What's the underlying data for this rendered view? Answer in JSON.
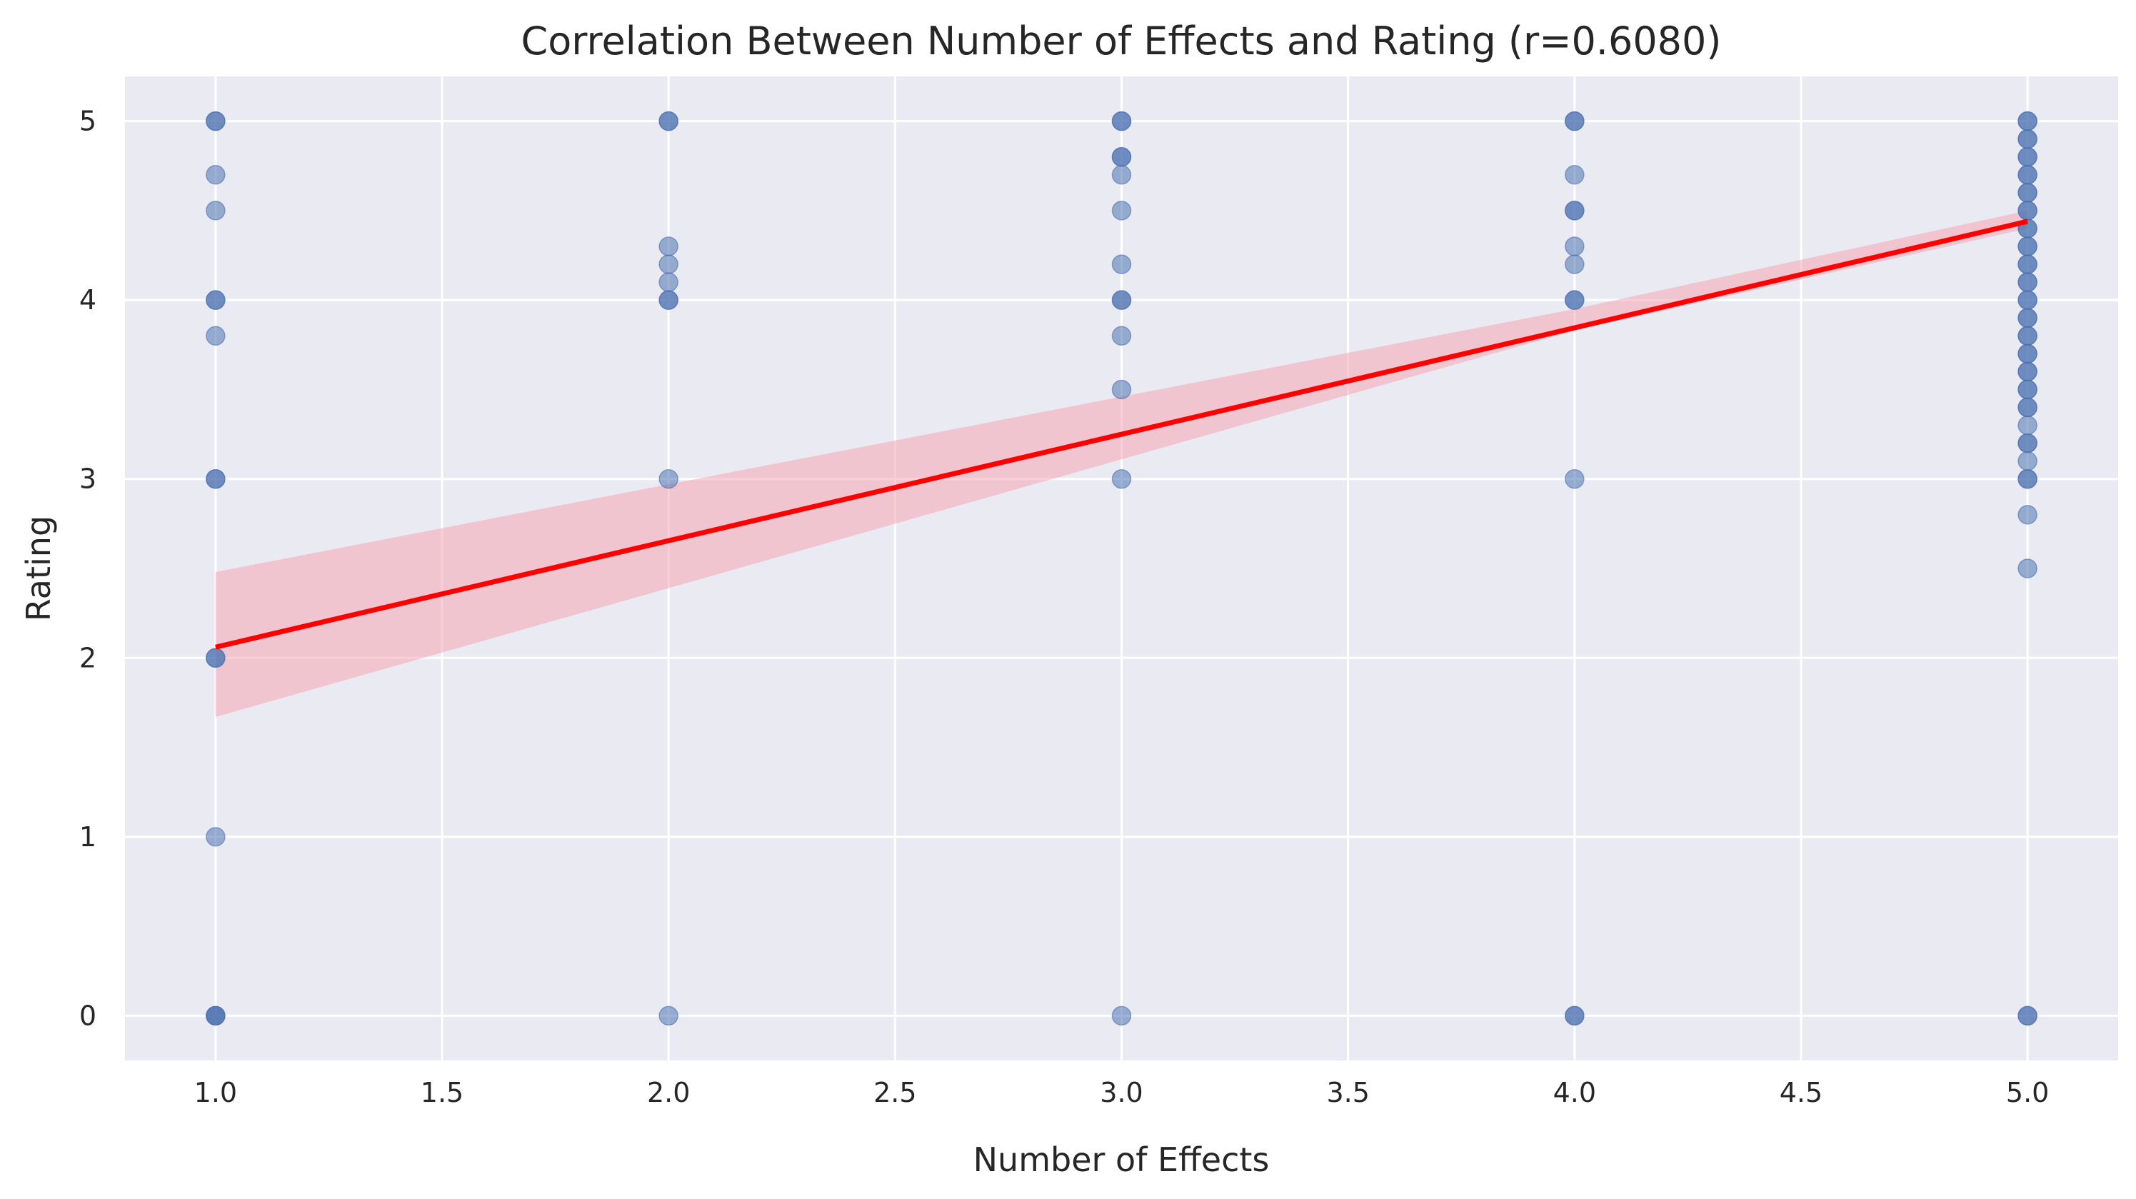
{
  "chart_data": {
    "type": "scatter",
    "title": "Correlation Between Number of Effects and Rating (r=0.6080)",
    "xlabel": "Number of Effects",
    "ylabel": "Rating",
    "xlim": [
      0.8,
      5.2
    ],
    "ylim": [
      -0.25,
      5.25
    ],
    "xticks": [
      "1.0",
      "1.5",
      "2.0",
      "2.5",
      "3.0",
      "3.5",
      "4.0",
      "4.5",
      "5.0"
    ],
    "yticks": [
      "0",
      "1",
      "2",
      "3",
      "4",
      "5"
    ],
    "grid": true,
    "point_color": "#4c72b0",
    "point_opacity": 0.55,
    "regression_color": "#ff0000",
    "band_color": "#f4a6b4",
    "background_color": "#eaeaf2",
    "points": [
      {
        "x": 1,
        "y": 5
      },
      {
        "x": 1,
        "y": 5
      },
      {
        "x": 1,
        "y": 4.7
      },
      {
        "x": 1,
        "y": 4.5
      },
      {
        "x": 1,
        "y": 4
      },
      {
        "x": 1,
        "y": 4
      },
      {
        "x": 1,
        "y": 3.8
      },
      {
        "x": 1,
        "y": 3
      },
      {
        "x": 1,
        "y": 3
      },
      {
        "x": 1,
        "y": 2
      },
      {
        "x": 1,
        "y": 2
      },
      {
        "x": 1,
        "y": 1
      },
      {
        "x": 1,
        "y": 0
      },
      {
        "x": 1,
        "y": 0
      },
      {
        "x": 1,
        "y": 0
      },
      {
        "x": 2,
        "y": 5
      },
      {
        "x": 2,
        "y": 5
      },
      {
        "x": 2,
        "y": 4.3
      },
      {
        "x": 2,
        "y": 4.2
      },
      {
        "x": 2,
        "y": 4.1
      },
      {
        "x": 2,
        "y": 4
      },
      {
        "x": 2,
        "y": 4
      },
      {
        "x": 2,
        "y": 3
      },
      {
        "x": 2,
        "y": 0
      },
      {
        "x": 3,
        "y": 5
      },
      {
        "x": 3,
        "y": 5
      },
      {
        "x": 3,
        "y": 4.8
      },
      {
        "x": 3,
        "y": 4.8
      },
      {
        "x": 3,
        "y": 4.7
      },
      {
        "x": 3,
        "y": 4.5
      },
      {
        "x": 3,
        "y": 4.2
      },
      {
        "x": 3,
        "y": 4
      },
      {
        "x": 3,
        "y": 4
      },
      {
        "x": 3,
        "y": 3.8
      },
      {
        "x": 3,
        "y": 3.5
      },
      {
        "x": 3,
        "y": 3
      },
      {
        "x": 3,
        "y": 0
      },
      {
        "x": 4,
        "y": 5
      },
      {
        "x": 4,
        "y": 5
      },
      {
        "x": 4,
        "y": 4.7
      },
      {
        "x": 4,
        "y": 4.5
      },
      {
        "x": 4,
        "y": 4.5
      },
      {
        "x": 4,
        "y": 4.3
      },
      {
        "x": 4,
        "y": 4.2
      },
      {
        "x": 4,
        "y": 4
      },
      {
        "x": 4,
        "y": 4
      },
      {
        "x": 4,
        "y": 3
      },
      {
        "x": 4,
        "y": 0
      },
      {
        "x": 4,
        "y": 0
      },
      {
        "x": 5,
        "y": 5
      },
      {
        "x": 5,
        "y": 5
      },
      {
        "x": 5,
        "y": 4.9
      },
      {
        "x": 5,
        "y": 4.9
      },
      {
        "x": 5,
        "y": 4.8
      },
      {
        "x": 5,
        "y": 4.8
      },
      {
        "x": 5,
        "y": 4.7
      },
      {
        "x": 5,
        "y": 4.7
      },
      {
        "x": 5,
        "y": 4.6
      },
      {
        "x": 5,
        "y": 4.6
      },
      {
        "x": 5,
        "y": 4.5
      },
      {
        "x": 5,
        "y": 4.5
      },
      {
        "x": 5,
        "y": 4.4
      },
      {
        "x": 5,
        "y": 4.4
      },
      {
        "x": 5,
        "y": 4.3
      },
      {
        "x": 5,
        "y": 4.3
      },
      {
        "x": 5,
        "y": 4.2
      },
      {
        "x": 5,
        "y": 4.2
      },
      {
        "x": 5,
        "y": 4.1
      },
      {
        "x": 5,
        "y": 4.1
      },
      {
        "x": 5,
        "y": 4
      },
      {
        "x": 5,
        "y": 4
      },
      {
        "x": 5,
        "y": 3.9
      },
      {
        "x": 5,
        "y": 3.9
      },
      {
        "x": 5,
        "y": 3.8
      },
      {
        "x": 5,
        "y": 3.8
      },
      {
        "x": 5,
        "y": 3.7
      },
      {
        "x": 5,
        "y": 3.7
      },
      {
        "x": 5,
        "y": 3.6
      },
      {
        "x": 5,
        "y": 3.6
      },
      {
        "x": 5,
        "y": 3.5
      },
      {
        "x": 5,
        "y": 3.5
      },
      {
        "x": 5,
        "y": 3.4
      },
      {
        "x": 5,
        "y": 3.4
      },
      {
        "x": 5,
        "y": 3.3
      },
      {
        "x": 5,
        "y": 3.2
      },
      {
        "x": 5,
        "y": 3.2
      },
      {
        "x": 5,
        "y": 3.1
      },
      {
        "x": 5,
        "y": 3
      },
      {
        "x": 5,
        "y": 3
      },
      {
        "x": 5,
        "y": 2.8
      },
      {
        "x": 5,
        "y": 2.5
      },
      {
        "x": 5,
        "y": 0
      },
      {
        "x": 5,
        "y": 0
      }
    ],
    "regression": {
      "x": [
        1,
        5
      ],
      "y": [
        2.06,
        4.44
      ]
    },
    "confidence_band": {
      "x": [
        1,
        4,
        5
      ],
      "lower": [
        1.67,
        3.83,
        4.4
      ],
      "upper": [
        2.48,
        3.95,
        4.5
      ]
    }
  }
}
